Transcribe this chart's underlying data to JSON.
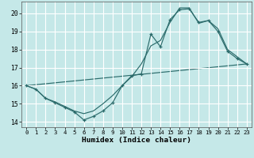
{
  "xlabel": "Humidex (Indice chaleur)",
  "bg_color": "#c5e8e8",
  "grid_color": "#ffffff",
  "line_color": "#2b6b6b",
  "xlim": [
    -0.5,
    23.5
  ],
  "ylim": [
    13.7,
    20.65
  ],
  "xticks": [
    0,
    1,
    2,
    3,
    4,
    5,
    6,
    7,
    8,
    9,
    10,
    11,
    12,
    13,
    14,
    15,
    16,
    17,
    18,
    19,
    20,
    21,
    22,
    23
  ],
  "yticks": [
    14,
    15,
    16,
    17,
    18,
    19,
    20
  ],
  "line1_x": [
    0,
    1,
    2,
    3,
    4,
    5,
    6,
    7,
    8,
    9,
    10,
    11,
    12,
    13,
    14,
    15,
    16,
    17,
    18,
    19,
    20,
    21,
    22,
    23
  ],
  "line1_y": [
    16.0,
    15.8,
    15.3,
    15.05,
    14.8,
    14.55,
    14.1,
    14.3,
    14.6,
    15.05,
    16.0,
    16.55,
    16.65,
    18.85,
    18.15,
    19.65,
    20.2,
    20.25,
    19.5,
    19.6,
    19.0,
    17.9,
    17.5,
    17.2
  ],
  "line2_x": [
    0,
    1,
    2,
    3,
    4,
    5,
    6,
    7,
    8,
    9,
    10,
    11,
    12,
    13,
    14,
    15,
    16,
    17,
    18,
    19,
    20,
    21,
    22,
    23
  ],
  "line2_y": [
    16.0,
    15.8,
    15.3,
    15.1,
    14.85,
    14.6,
    14.45,
    14.6,
    15.0,
    15.45,
    16.0,
    16.5,
    17.2,
    18.2,
    18.5,
    19.5,
    20.3,
    20.3,
    19.45,
    19.6,
    19.15,
    18.0,
    17.6,
    17.2
  ],
  "line3_x": [
    0,
    23
  ],
  "line3_y": [
    16.0,
    17.2
  ]
}
